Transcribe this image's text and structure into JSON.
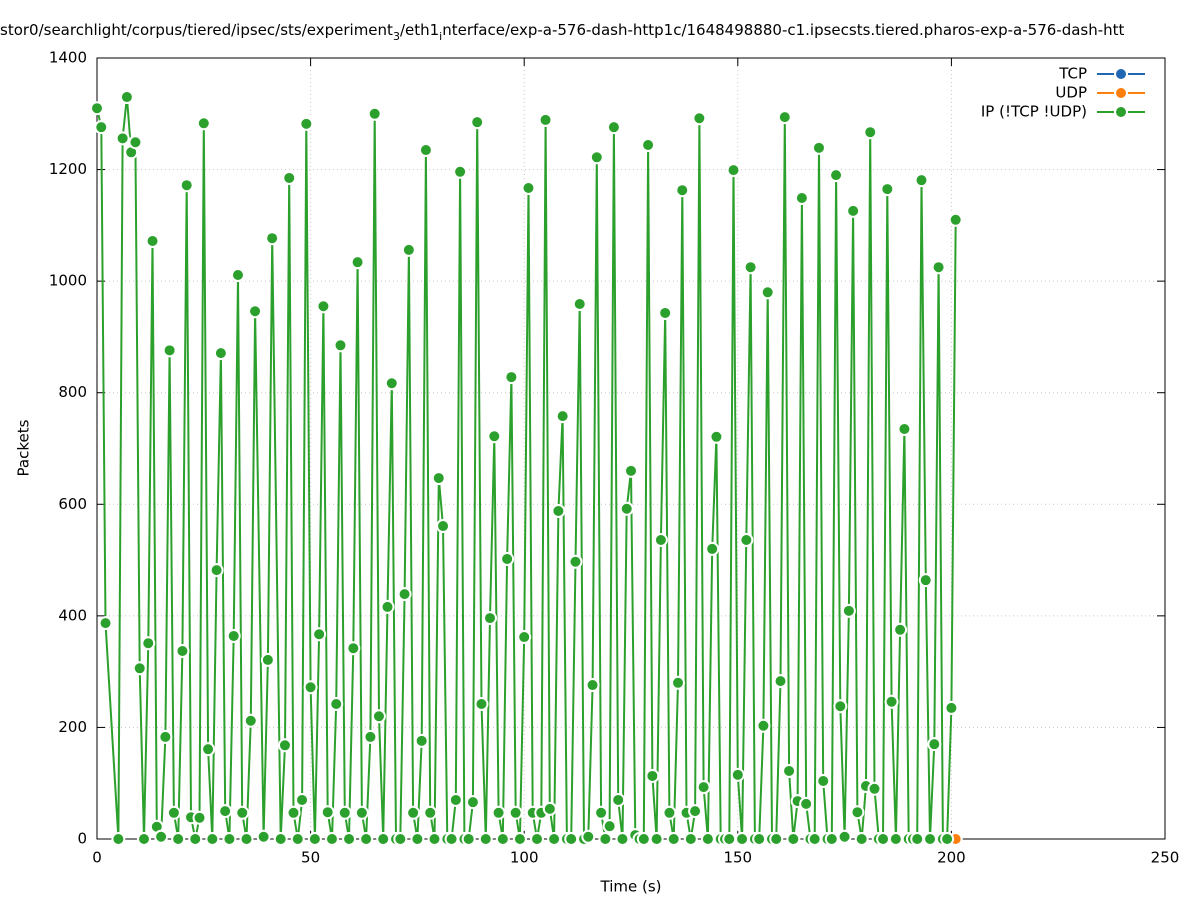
{
  "chart_data": {
    "type": "line",
    "title_parts": [
      "stor0/searchlight/corpus/tiered/ipsec/sts/experiment",
      "3",
      "/eth1",
      "i",
      "nterface/exp-a-576-dash-http1c/1648498880-c1.ipsecsts.tiered.pharos-exp-a-576-dash-htt"
    ],
    "xlabel": "Time (s)",
    "ylabel": "Packets",
    "xlim": [
      0,
      250
    ],
    "ylim": [
      0,
      1400
    ],
    "xticks": [
      0,
      50,
      100,
      150,
      200,
      250
    ],
    "yticks": [
      0,
      200,
      400,
      600,
      800,
      1000,
      1200,
      1400
    ],
    "grid": true,
    "legend": "top-right",
    "series": [
      {
        "name": "TCP",
        "color": "#1f66b3",
        "x": [
          201
        ],
        "values": [
          0
        ]
      },
      {
        "name": "UDP",
        "color": "#ff7f0e",
        "x": [
          201
        ],
        "values": [
          0
        ]
      },
      {
        "name": "IP (!TCP  !UDP)",
        "color": "#2ca02c",
        "x": [
          0,
          1,
          2,
          5,
          6,
          7,
          8,
          9,
          10,
          11,
          12,
          13,
          14,
          15,
          16,
          17,
          18,
          19,
          20,
          21,
          22,
          23,
          24,
          25,
          26,
          27,
          28,
          29,
          30,
          31,
          32,
          33,
          34,
          35,
          36,
          37,
          39,
          40,
          41,
          43,
          44,
          45,
          46,
          47,
          48,
          49,
          50,
          51,
          52,
          53,
          54,
          55,
          56,
          57,
          58,
          59,
          60,
          61,
          62,
          63,
          64,
          65,
          66,
          67,
          68,
          69,
          70,
          71,
          72,
          73,
          74,
          75,
          76,
          77,
          78,
          79,
          80,
          81,
          82,
          83,
          84,
          85,
          86,
          87,
          88,
          89,
          90,
          91,
          92,
          93,
          94,
          95,
          96,
          97,
          98,
          99,
          100,
          101,
          102,
          103,
          104,
          105,
          106,
          107,
          108,
          109,
          110,
          111,
          112,
          113,
          114,
          115,
          116,
          117,
          118,
          119,
          120,
          121,
          122,
          123,
          124,
          125,
          126,
          127,
          128,
          129,
          130,
          131,
          132,
          133,
          134,
          135,
          136,
          137,
          138,
          139,
          140,
          141,
          142,
          143,
          144,
          145,
          146,
          147,
          148,
          149,
          150,
          151,
          152,
          153,
          154,
          155,
          156,
          157,
          158,
          159,
          160,
          161,
          162,
          163,
          164,
          165,
          166,
          167,
          168,
          169,
          170,
          171,
          172,
          173,
          174,
          175,
          176,
          177,
          178,
          179,
          180,
          181,
          182,
          183,
          184,
          185,
          186,
          187,
          188,
          189,
          190,
          191,
          192,
          193,
          194,
          195,
          196,
          197,
          198,
          199,
          200,
          201
        ],
        "values": [
          1310,
          1276,
          387,
          0,
          1256,
          1330,
          1231,
          1249,
          306,
          0,
          351,
          1072,
          22,
          4,
          183,
          876,
          47,
          0,
          337,
          1172,
          39,
          0,
          38,
          1283,
          161,
          0,
          482,
          871,
          50,
          0,
          364,
          1011,
          47,
          0,
          212,
          946,
          4,
          321,
          1077,
          0,
          168,
          1185,
          47,
          0,
          70,
          1282,
          272,
          0,
          367,
          955,
          48,
          0,
          242,
          885,
          47,
          0,
          342,
          1034,
          47,
          0,
          183,
          1300,
          220,
          0,
          416,
          817,
          0,
          0,
          439,
          1056,
          47,
          0,
          176,
          1235,
          47,
          0,
          647,
          561,
          0,
          0,
          70,
          1196,
          0,
          0,
          66,
          1285,
          242,
          0,
          396,
          722,
          47,
          0,
          502,
          828,
          47,
          0,
          362,
          1167,
          47,
          0,
          47,
          1289,
          54,
          0,
          588,
          758,
          0,
          0,
          497,
          959,
          0,
          4,
          276,
          1222,
          47,
          0,
          23,
          1276,
          70,
          0,
          592,
          660,
          7,
          0,
          0,
          1244,
          113,
          0,
          536,
          943,
          47,
          0,
          280,
          1163,
          47,
          0,
          50,
          1292,
          93,
          0,
          520,
          721,
          0,
          0,
          0,
          1199,
          115,
          0,
          536,
          1025,
          0,
          0,
          203,
          980,
          0,
          0,
          283,
          1294,
          122,
          0,
          68,
          1149,
          63,
          0,
          0,
          1239,
          104,
          0,
          0,
          1190,
          238,
          4,
          409,
          1126,
          48,
          0,
          95,
          1267,
          90,
          0,
          0,
          1165,
          246,
          0,
          375,
          735,
          0,
          0,
          0,
          1181,
          464,
          0,
          170,
          1025,
          0,
          0,
          235,
          1110
        ]
      }
    ]
  }
}
